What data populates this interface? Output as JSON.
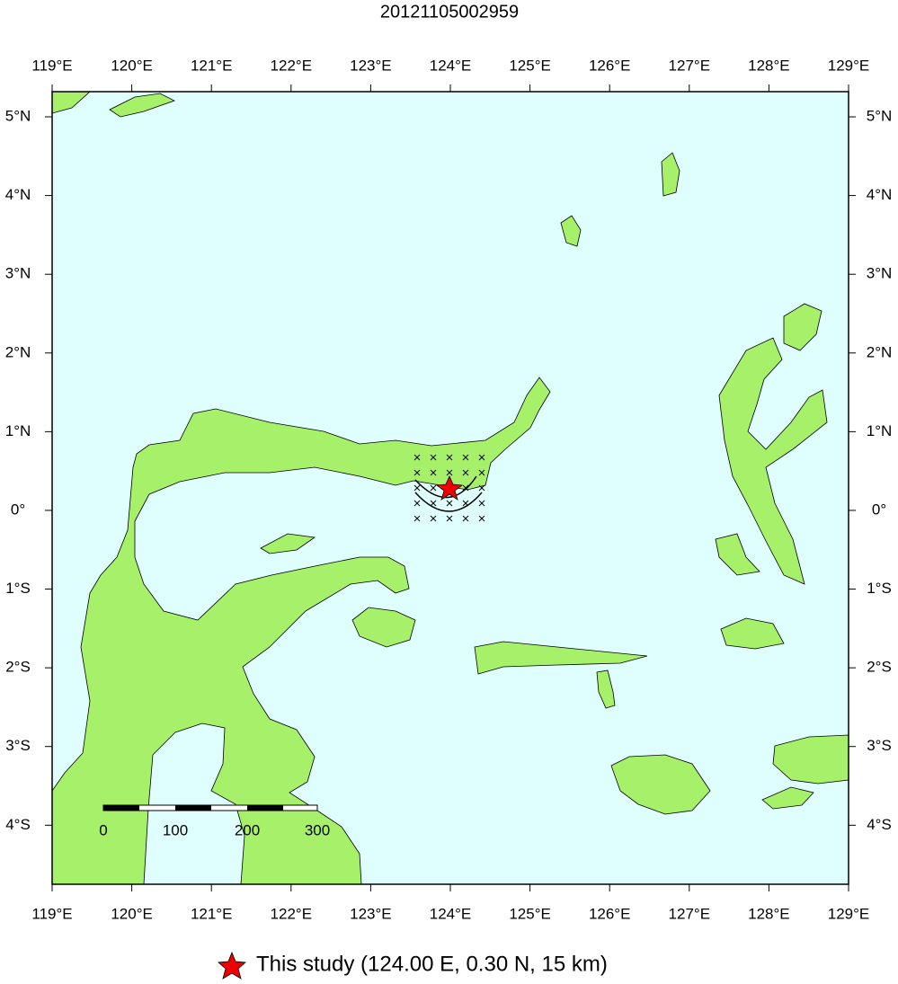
{
  "title": "20121105002959",
  "lon_range": [
    119,
    129
  ],
  "lat_range": [
    -4.75,
    5.32
  ],
  "lon_ticks": [
    {
      "value": 119,
      "label": "119°E"
    },
    {
      "value": 120,
      "label": "120°E"
    },
    {
      "value": 121,
      "label": "121°E"
    },
    {
      "value": 122,
      "label": "122°E"
    },
    {
      "value": 123,
      "label": "123°E"
    },
    {
      "value": 124,
      "label": "124°E"
    },
    {
      "value": 125,
      "label": "125°E"
    },
    {
      "value": 126,
      "label": "126°E"
    },
    {
      "value": 127,
      "label": "127°E"
    },
    {
      "value": 128,
      "label": "128°E"
    },
    {
      "value": 129,
      "label": "129°E"
    }
  ],
  "lat_ticks": [
    {
      "value": 5,
      "label": "5°N"
    },
    {
      "value": 4,
      "label": "4°N"
    },
    {
      "value": 3,
      "label": "3°N"
    },
    {
      "value": 2,
      "label": "2°N"
    },
    {
      "value": 1,
      "label": "1°N"
    },
    {
      "value": 0,
      "label": "0°"
    },
    {
      "value": -1,
      "label": "1°S"
    },
    {
      "value": -2,
      "label": "2°S"
    },
    {
      "value": -3,
      "label": "3°S"
    },
    {
      "value": -4,
      "label": "4°S"
    }
  ],
  "scale_bar": {
    "labels": [
      "0",
      "100",
      "200",
      "300"
    ]
  },
  "legend": "This study (124.00 E, 0.30 N, 15 km)"
}
